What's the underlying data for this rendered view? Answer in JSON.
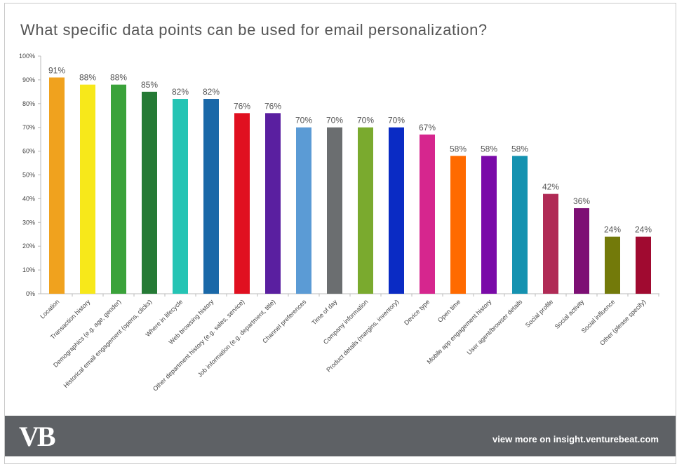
{
  "chart_data": {
    "type": "bar",
    "title": "What specific data points can be used for email personalization?",
    "xlabel": "",
    "ylabel": "",
    "ylim": [
      0,
      100
    ],
    "yticks": [
      "0%",
      "10%",
      "20%",
      "30%",
      "40%",
      "50%",
      "60%",
      "70%",
      "80%",
      "90%",
      "100%"
    ],
    "grid": false,
    "categories": [
      "Location",
      "Transaction history",
      "Demographics (e.g. age, gender)",
      "Historical email engagement (opens, clicks)",
      "Where in lifecycle",
      "Web browsing history",
      "Other department history (e.g. sales, service)",
      "Job information (e.g. department, title)",
      "Channel preferences",
      "Time of day",
      "Company information",
      "Product details (margins, inventory)",
      "Device type",
      "Open time",
      "Mobile app engagement history",
      "User agent/browser details",
      "Social profile",
      "Social activity",
      "Social influence",
      "Other (please specify)"
    ],
    "values": [
      91,
      88,
      88,
      85,
      82,
      82,
      76,
      76,
      70,
      70,
      70,
      70,
      67,
      58,
      58,
      58,
      42,
      36,
      24,
      24
    ],
    "data_labels": [
      "91%",
      "88%",
      "88%",
      "85%",
      "82%",
      "82%",
      "76%",
      "76%",
      "70%",
      "70%",
      "70%",
      "70%",
      "67%",
      "58%",
      "58%",
      "58%",
      "42%",
      "36%",
      "24%",
      "24%"
    ],
    "colors": [
      "#f0a21e",
      "#f7e81a",
      "#3aa23a",
      "#257a35",
      "#25c4b4",
      "#1a68a8",
      "#e01020",
      "#5a1fa0",
      "#5b9bd5",
      "#6b6e70",
      "#7aaa2e",
      "#0a2bc4",
      "#d6268e",
      "#ff6a00",
      "#7a0aa8",
      "#1592b0",
      "#b02a55",
      "#7d0f74",
      "#737a0a",
      "#a00a30"
    ]
  },
  "footer": {
    "logo": "VB",
    "link": "view more on insight.venturebeat.com"
  }
}
